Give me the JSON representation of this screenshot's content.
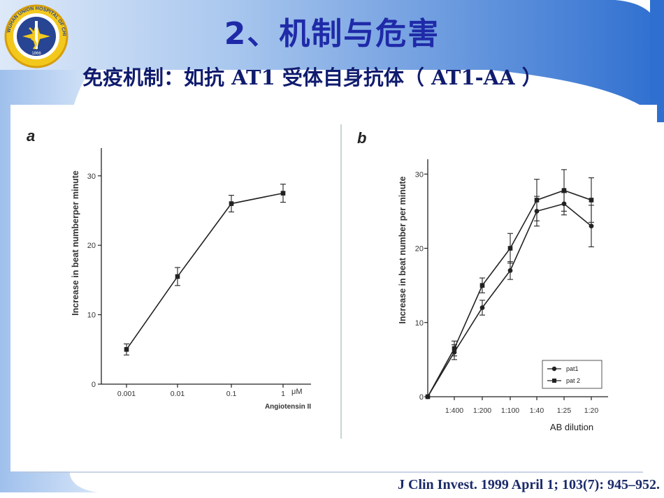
{
  "slide": {
    "title": "2、机制与危害",
    "subtitle": "免疫机制：如抗 AT1 受体自身抗体（ AT1-AA ）",
    "citation": "J Clin Invest. 1999 April 1; 103(7): 945–952.",
    "logo_text": "WUHAN UNION HOSPITAL OF CHINA",
    "logo_year": "1866",
    "colors": {
      "title": "#1f2aa8",
      "band": "#3d7fd8",
      "band_light": "#cfe0f6"
    }
  },
  "chart_data": [
    {
      "type": "line",
      "panel_label": "a",
      "ylabel": "Increase in beat numberper minute",
      "xlabel": "Angiotensin II",
      "x_unit": "μM",
      "categories": [
        "0.001",
        "0.01",
        "0.1",
        "1"
      ],
      "yticks": [
        "0",
        "10",
        "20",
        "30"
      ],
      "ylim": [
        0,
        34
      ],
      "series": [
        {
          "values": [
            5,
            15.5,
            26,
            27.5
          ],
          "errors": [
            0.8,
            1.3,
            1.2,
            1.3
          ],
          "marker": "square"
        }
      ]
    },
    {
      "type": "line",
      "panel_label": "b",
      "ylabel": "Increase in beat number per minute",
      "xlabel": "AB dilution",
      "categories": [
        "0",
        "1:400",
        "1:200",
        "1:100",
        "1:40",
        "1:25",
        "1:20"
      ],
      "xticks": [
        "1:400",
        "1:200",
        "1:100",
        "1:40",
        "1:25",
        "1:20"
      ],
      "yticks": [
        "0",
        "10",
        "20",
        "30"
      ],
      "ylim": [
        0,
        32
      ],
      "legend": "bottom-right",
      "series": [
        {
          "name": "pat1",
          "marker": "circle",
          "values": [
            0,
            6,
            12,
            17,
            25,
            26,
            23
          ],
          "errors": [
            0,
            1.0,
            1.0,
            1.2,
            2.0,
            1.5,
            2.8
          ]
        },
        {
          "name": "pat 2",
          "marker": "square",
          "values": [
            0,
            6.5,
            15,
            20,
            26.5,
            27.8,
            26.5
          ],
          "errors": [
            0,
            1.0,
            1.0,
            2.0,
            2.8,
            2.8,
            3.0
          ]
        }
      ]
    }
  ]
}
